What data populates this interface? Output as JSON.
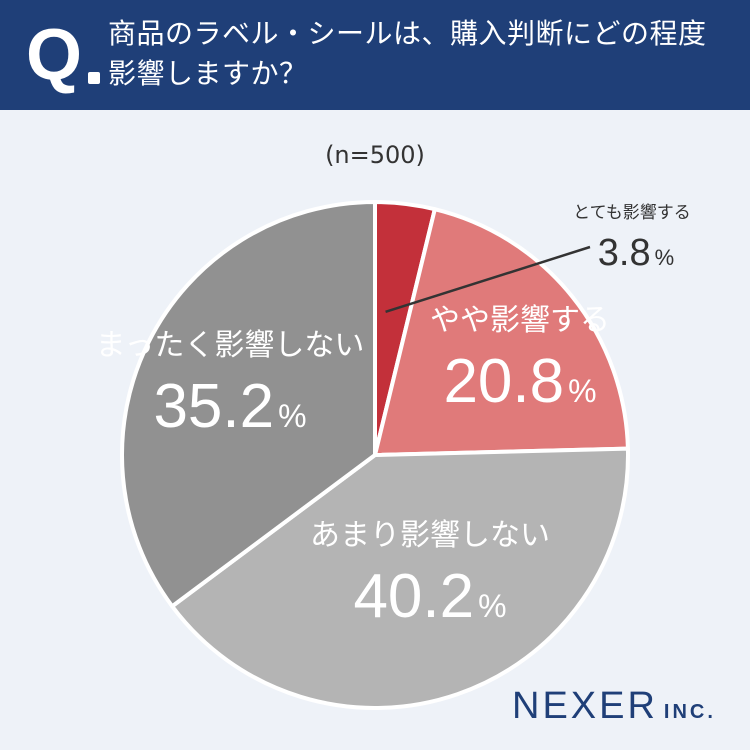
{
  "header": {
    "q_mark": "Q",
    "question": "商品のラベル・シールは、購入判断にどの程度影響しますか？"
  },
  "sample_size": "(n=500)",
  "logo": {
    "main": "NEXER",
    "suffix": "INC."
  },
  "colors": {
    "header_bg": "#1f3f78",
    "background": "#eef2f8",
    "very_much": "#c3303a",
    "somewhat": "#e07a7a",
    "not_much": "#b4b4b4",
    "not_at_all": "#919191"
  },
  "chart_data": {
    "type": "pie",
    "start": "12 o'clock",
    "direction": "clockwise",
    "slices": [
      {
        "label": "とても影響する",
        "value": 3.8,
        "display": "3.8",
        "unit": "%",
        "color": "#c3303a"
      },
      {
        "label": "やや影響する",
        "value": 20.8,
        "display": "20.8",
        "unit": "%",
        "color": "#e07a7a"
      },
      {
        "label": "あまり影響しない",
        "value": 40.2,
        "display": "40.2",
        "unit": "%",
        "color": "#b4b4b4"
      },
      {
        "label": "まったく影響しない",
        "value": 35.2,
        "display": "35.2",
        "unit": "%",
        "color": "#919191"
      }
    ]
  }
}
